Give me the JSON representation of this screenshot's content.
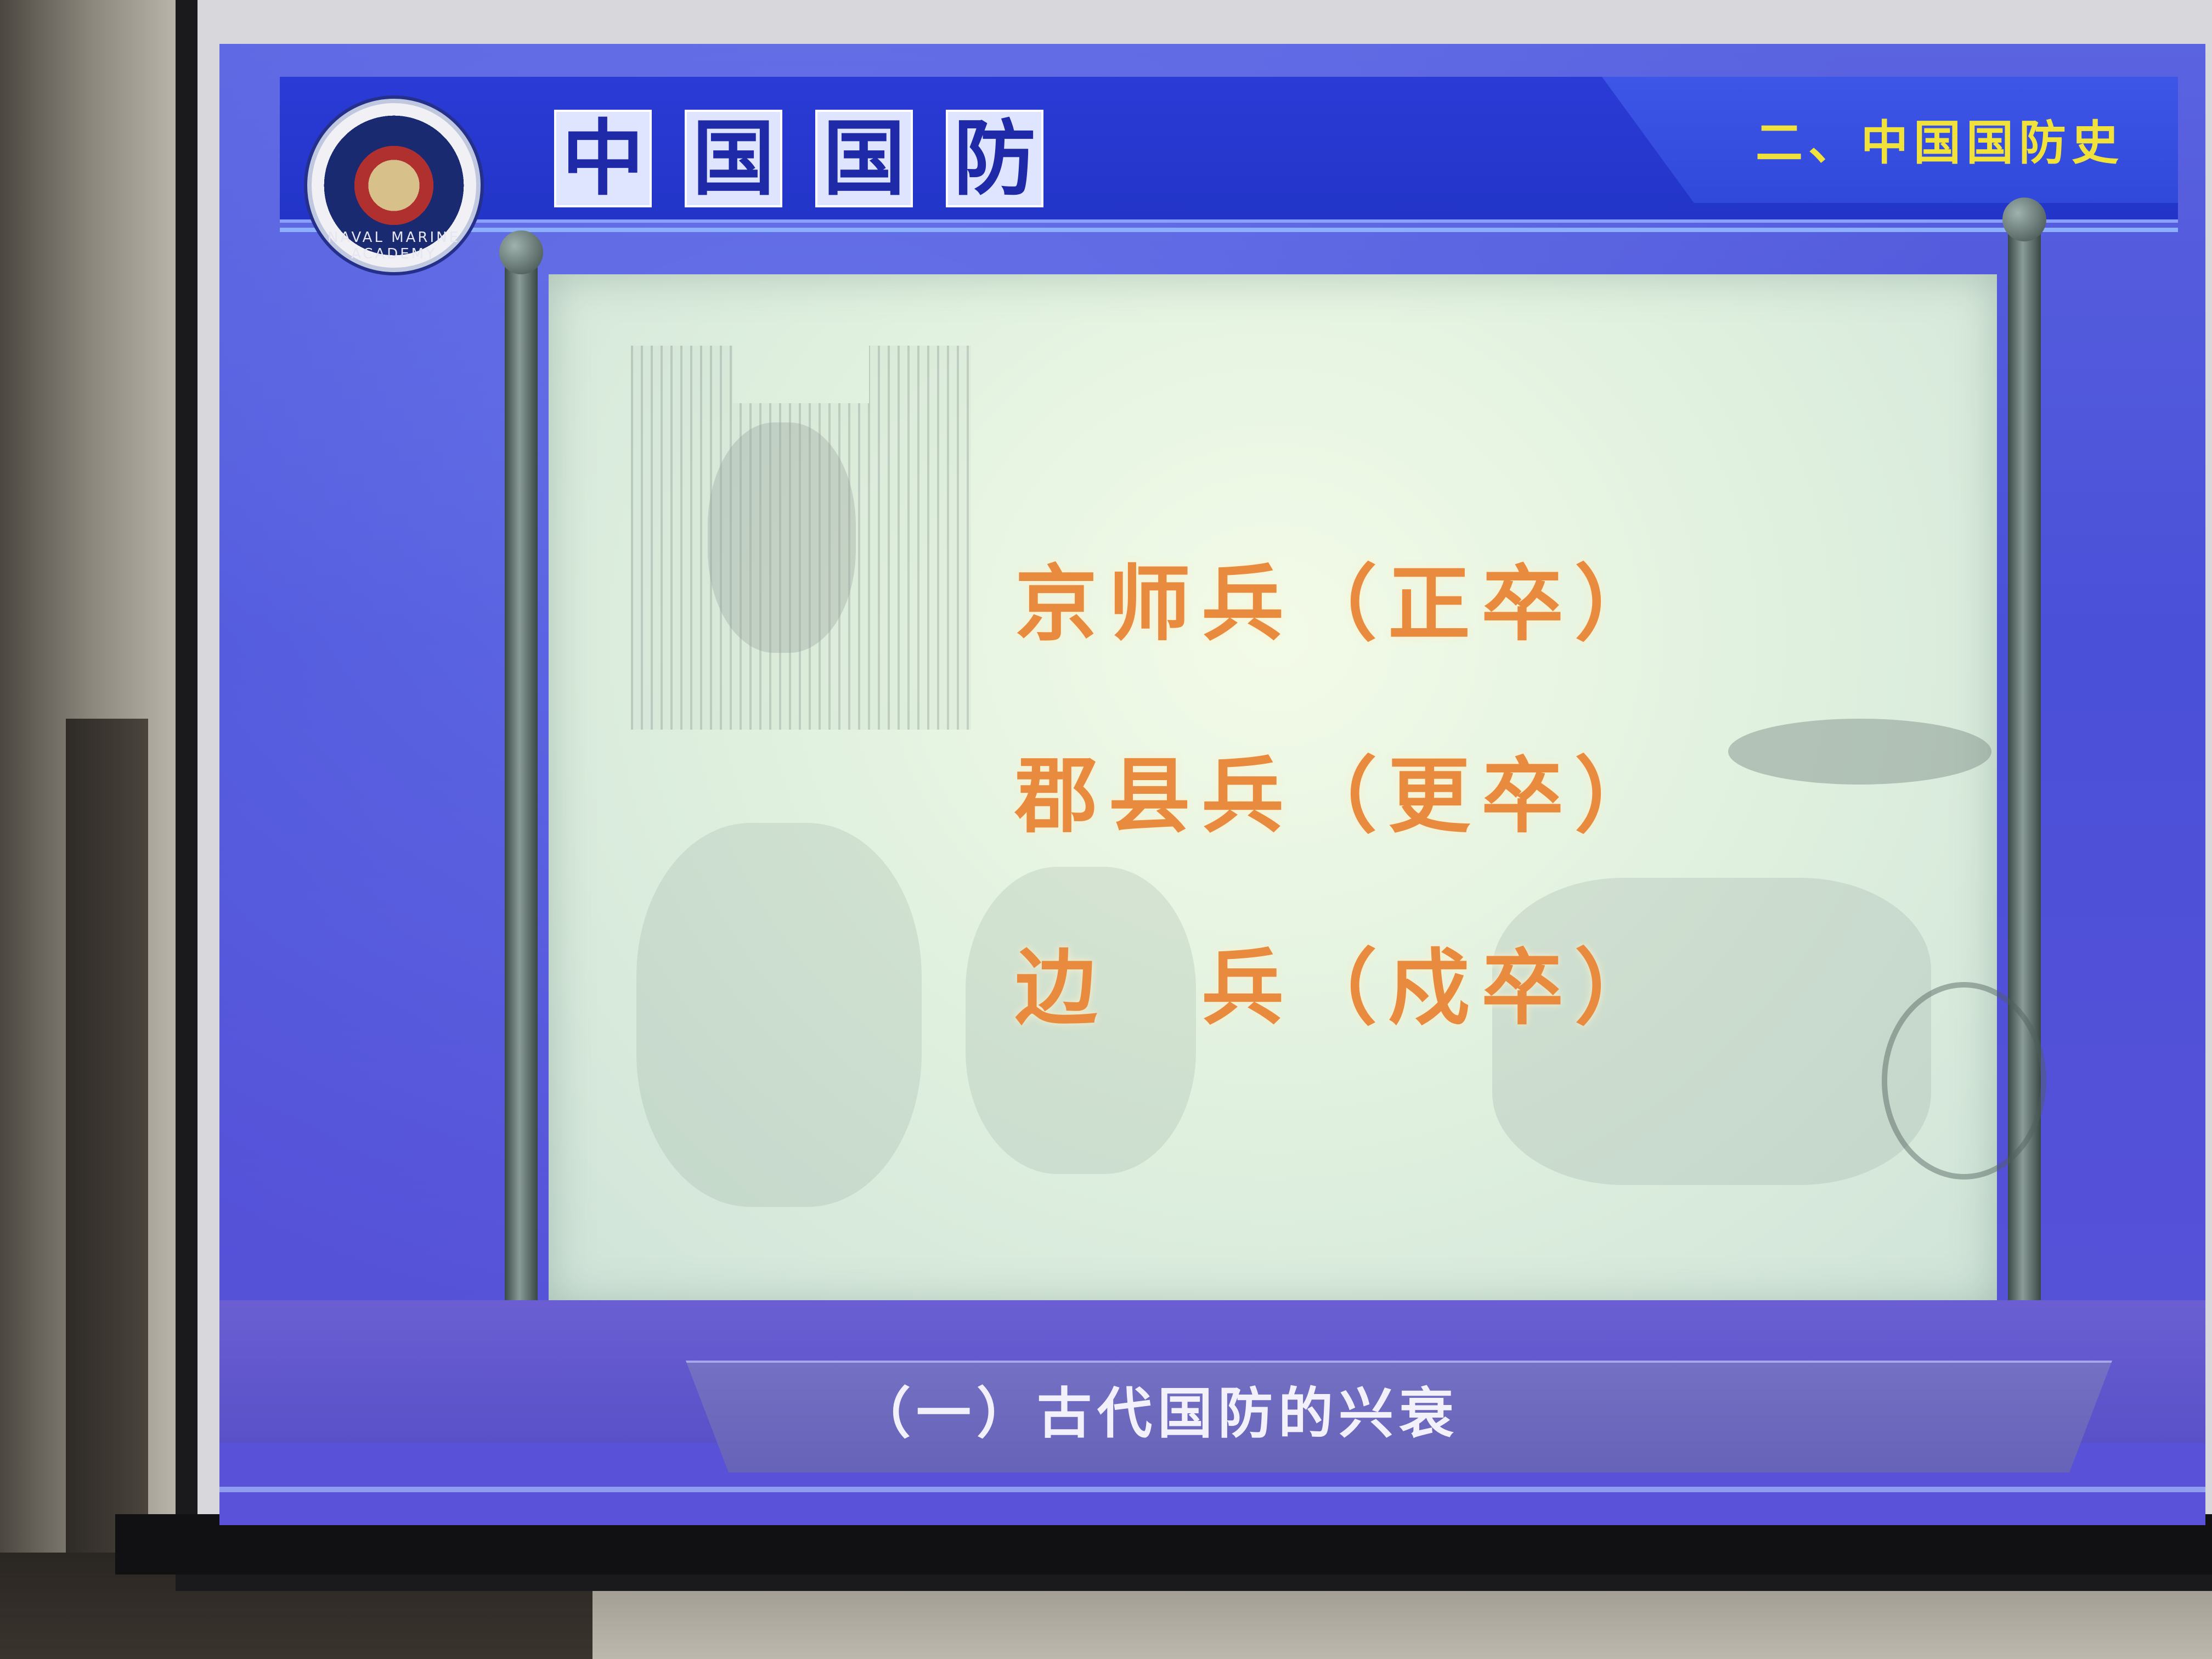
{
  "slide": {
    "emblem_text": "NAVAL MARINE ACADEMY",
    "main_title_chars": [
      "中",
      "国",
      "国",
      "防"
    ],
    "section_label": "二、中国国防史",
    "lines": [
      "京师兵（正卒）",
      "郡县兵（更卒）",
      "边　兵（戍卒）"
    ],
    "bottom_title": "（一）古代国防的兴衰"
  },
  "colors": {
    "slide_blue": "#4a50d8",
    "title_yellow": "#f0e23a",
    "line_orange": "#e98b3e"
  }
}
